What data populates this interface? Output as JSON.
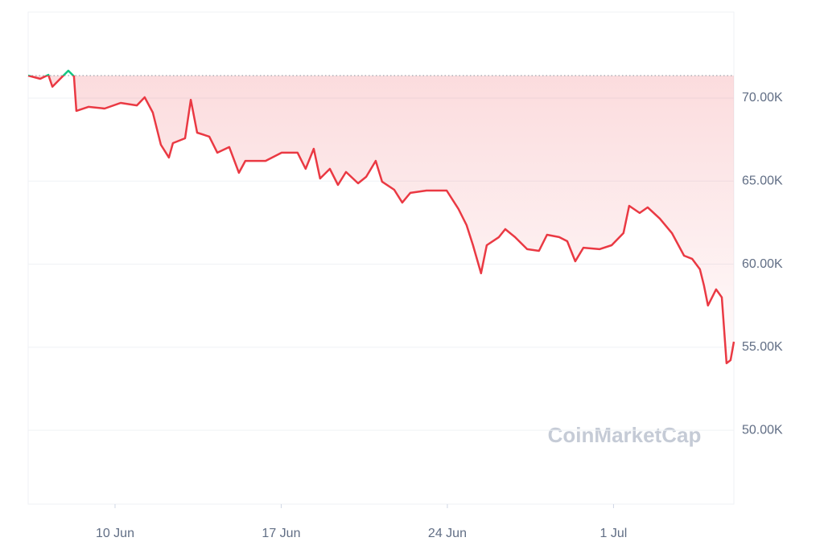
{
  "chart_data": {
    "type": "line",
    "watermark": "CoinMarketCap",
    "x": [
      6.34,
      6.85,
      7.19,
      7.36,
      7.69,
      8.03,
      8.27,
      8.37,
      8.88,
      9.56,
      10.24,
      10.92,
      11.25,
      11.59,
      11.93,
      12.27,
      12.44,
      12.95,
      13.19,
      13.46,
      13.97,
      14.31,
      14.81,
      15.22,
      15.49,
      16.34,
      17.02,
      17.69,
      18.03,
      18.37,
      18.64,
      19.05,
      19.39,
      19.73,
      20.24,
      20.58,
      20.98,
      21.25,
      21.76,
      22.1,
      22.44,
      23.12,
      23.97,
      24.47,
      24.81,
      25.08,
      25.42,
      25.66,
      26.17,
      26.44,
      26.85,
      27.36,
      27.86,
      28.2,
      28.71,
      29.05,
      29.39,
      29.73,
      30.41,
      30.92,
      31.42,
      31.66,
      32.1,
      32.44,
      32.95,
      33.46,
      33.97,
      34.31,
      34.64,
      34.81,
      34.98,
      35.32,
      35.56,
      35.76,
      35.93,
      36.07
    ],
    "values": [
      71355,
      71160,
      71400,
      70680,
      71160,
      71650,
      71310,
      69230,
      69470,
      69370,
      69710,
      69560,
      70050,
      69130,
      67190,
      66420,
      67290,
      67580,
      69900,
      67920,
      67680,
      66710,
      67050,
      65500,
      66220,
      66220,
      66710,
      66710,
      65740,
      66950,
      65160,
      65740,
      64770,
      65550,
      64870,
      65260,
      66220,
      64970,
      64480,
      63710,
      64290,
      64430,
      64430,
      63320,
      62350,
      61140,
      59450,
      61140,
      61630,
      62110,
      61630,
      60900,
      60800,
      61770,
      61630,
      61380,
      60170,
      60990,
      60900,
      61140,
      61870,
      63510,
      63080,
      63420,
      62740,
      61870,
      60510,
      60320,
      59690,
      58720,
      57510,
      58480,
      58000,
      54030,
      54220,
      55330
    ],
    "color": "#ea3943",
    "up_color": "#16c784",
    "baseline": 71355,
    "xlim": [
      6.34,
      36.07
    ],
    "xticks": [
      {
        "value": 10,
        "label": "10 Jun"
      },
      {
        "value": 17,
        "label": "17 Jun"
      },
      {
        "value": 24,
        "label": "24 Jun"
      },
      {
        "value": 31,
        "label": "1 Jul"
      }
    ],
    "ylim": [
      45550,
      75180
    ],
    "yticks": [
      {
        "value": 50000,
        "label": "50.00K"
      },
      {
        "value": 55000,
        "label": "55.00K"
      },
      {
        "value": 60000,
        "label": "60.00K"
      },
      {
        "value": 65000,
        "label": "65.00K"
      },
      {
        "value": 70000,
        "label": "70.00K"
      }
    ],
    "grid": true
  }
}
